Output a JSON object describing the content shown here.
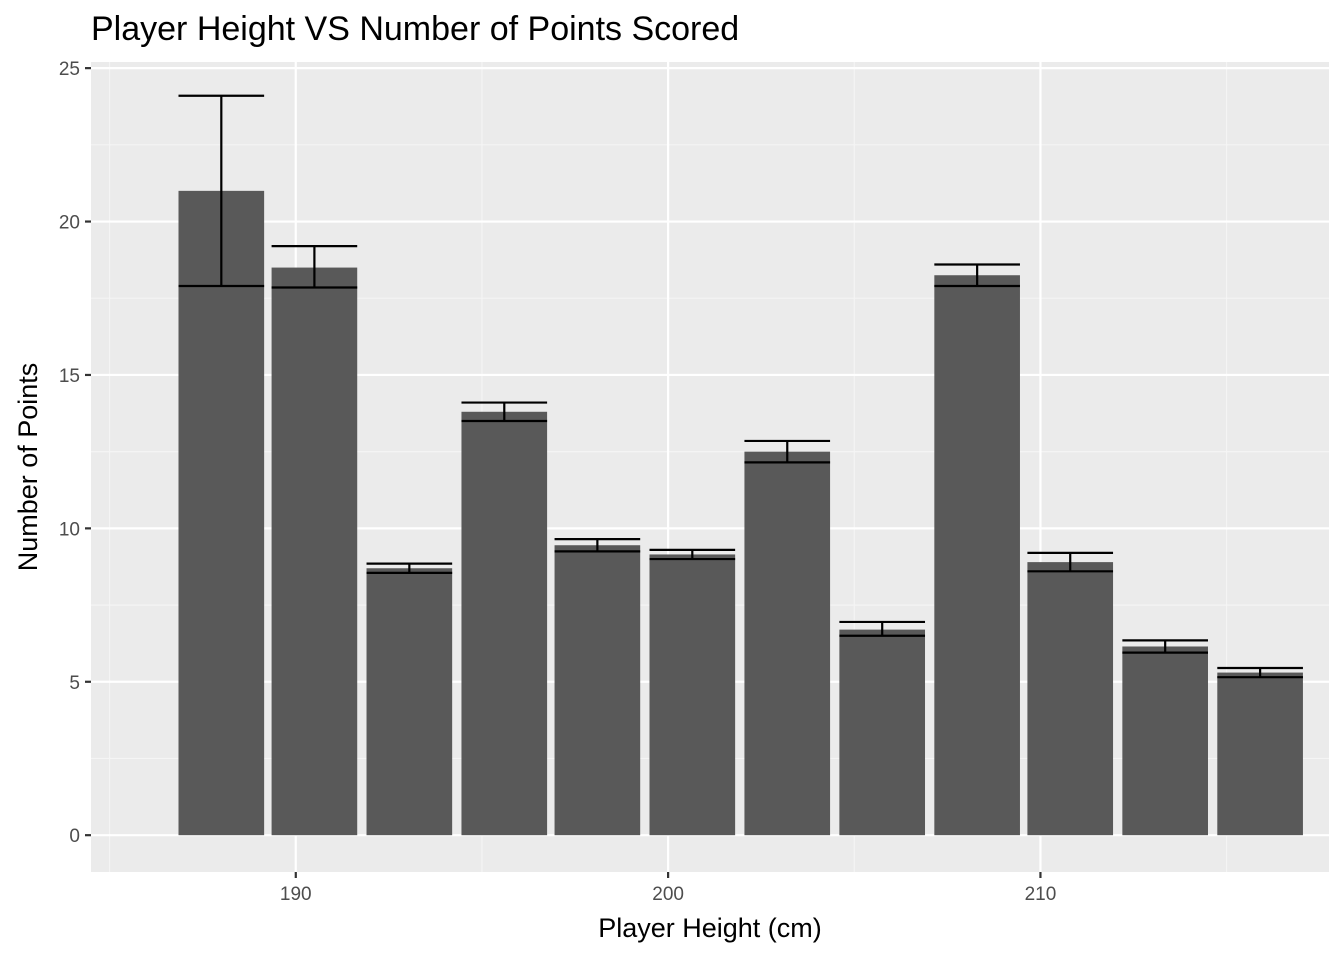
{
  "chart_data": {
    "type": "bar",
    "title": "Player Height VS Number of Points Scored",
    "xlabel": "Player Height (cm)",
    "ylabel": "Number of Points",
    "xlim": [
      184.5,
      217.75
    ],
    "ylim": [
      -1.2,
      25.2
    ],
    "xticks": [
      190,
      200,
      210
    ],
    "yticks": [
      0,
      5,
      10,
      15,
      20,
      25
    ],
    "grid": true,
    "legend": "none",
    "bar_width": 2.3,
    "x": [
      188.0,
      190.5,
      193.05,
      195.6,
      198.1,
      200.65,
      203.2,
      205.75,
      208.3,
      210.8,
      213.35,
      215.9
    ],
    "values": [
      21.0,
      18.5,
      8.7,
      13.8,
      9.45,
      9.15,
      12.5,
      6.7,
      18.25,
      8.9,
      6.15,
      5.3
    ],
    "error_bars": [
      [
        17.9,
        24.1
      ],
      [
        17.85,
        19.2
      ],
      [
        8.55,
        8.85
      ],
      [
        13.5,
        14.1
      ],
      [
        9.25,
        9.65
      ],
      [
        9.0,
        9.3
      ],
      [
        12.15,
        12.85
      ],
      [
        6.5,
        6.95
      ],
      [
        17.9,
        18.6
      ],
      [
        8.6,
        9.2
      ],
      [
        5.95,
        6.35
      ],
      [
        5.15,
        5.45
      ]
    ],
    "colors": {
      "bar": "#595959",
      "panel_background": "#ebebeb",
      "grid_major": "#ffffff",
      "grid_minor": "#f5f5f5",
      "error_bar": "#000000",
      "tick_label": "#4d4d4d",
      "tick_mark": "#333333"
    }
  }
}
